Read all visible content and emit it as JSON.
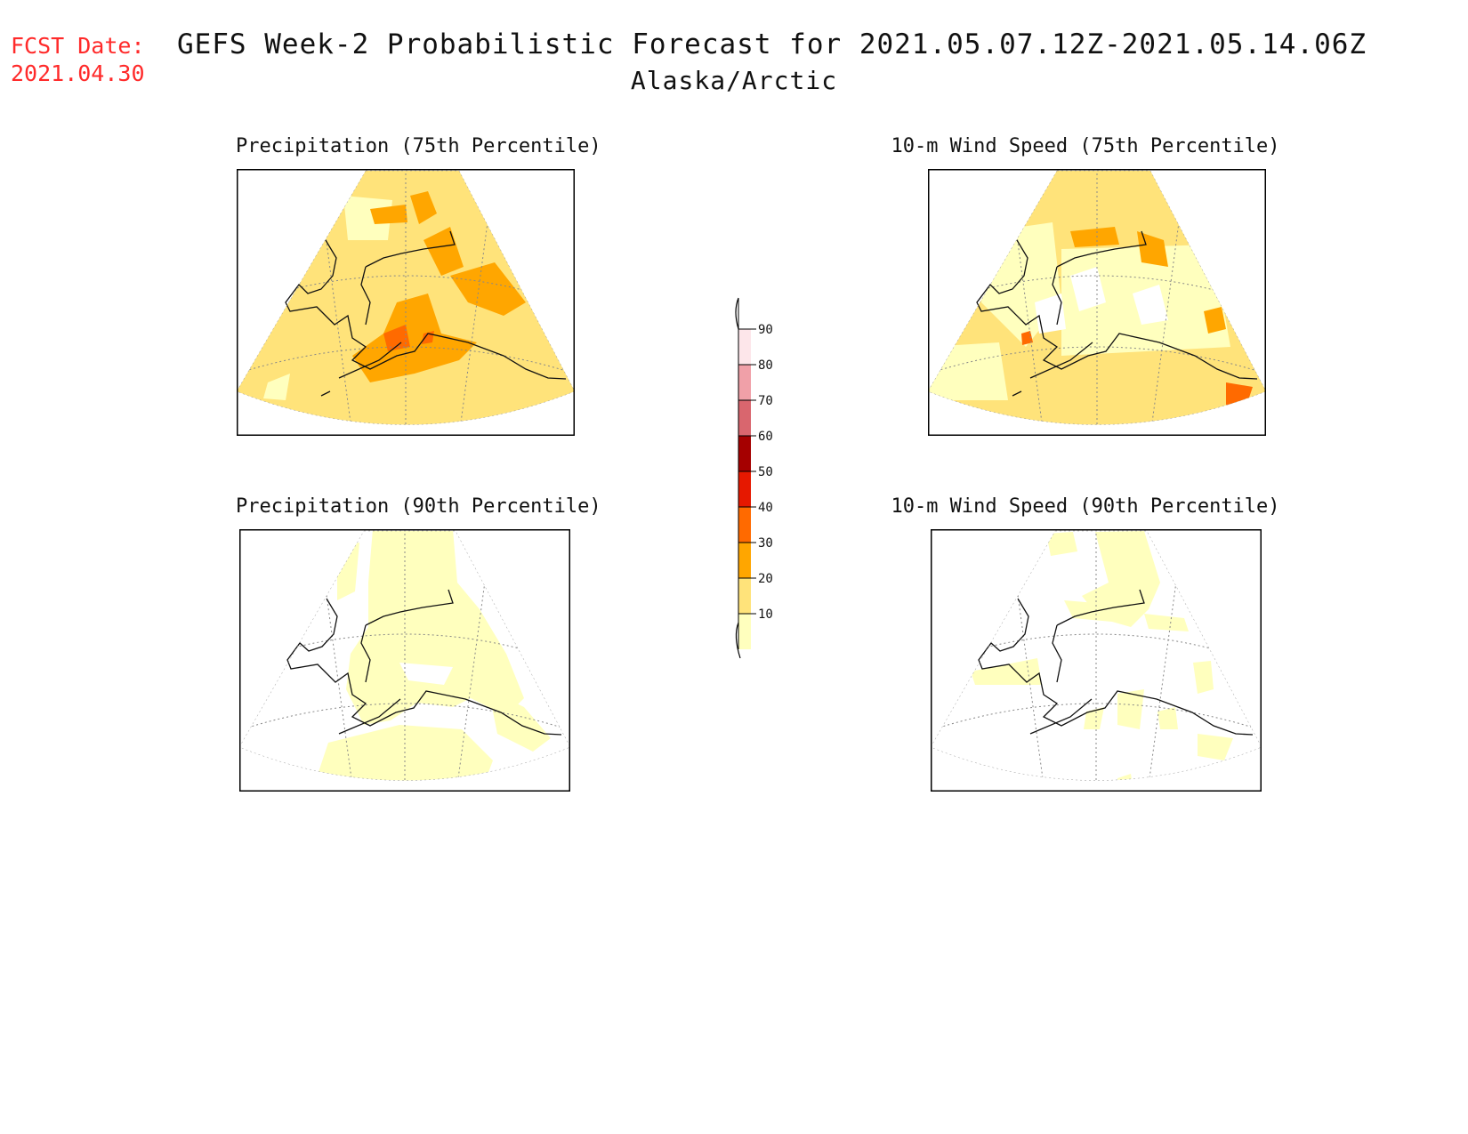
{
  "header": {
    "fcst_label": "FCST Date:",
    "fcst_date": "2021.04.30",
    "title": "GEFS Week-2 Probabilistic Forecast for 2021.05.07.12Z-2021.05.14.06Z",
    "subtitle": "Alaska/Arctic"
  },
  "panels": [
    {
      "title": "Precipitation (75th Percentile)",
      "level": "high"
    },
    {
      "title": "10-m Wind Speed (75th Percentile)",
      "level": "mixed"
    },
    {
      "title": "Precipitation (90th Percentile)",
      "level": "low"
    },
    {
      "title": "10-m Wind Speed (90th Percentile)",
      "level": "verylow"
    }
  ],
  "legend": {
    "ticks": [
      "90",
      "80",
      "70",
      "60",
      "50",
      "40",
      "30",
      "20",
      "10"
    ],
    "colors": {
      "10": "#ffffbe",
      "20": "#ffe37a",
      "30": "#ffa600",
      "40": "#ff6a00",
      "50": "#e61800",
      "60": "#a50000",
      "70": "#d9666e",
      "80": "#f0a0a8",
      "90": "#fde6ea"
    }
  }
}
